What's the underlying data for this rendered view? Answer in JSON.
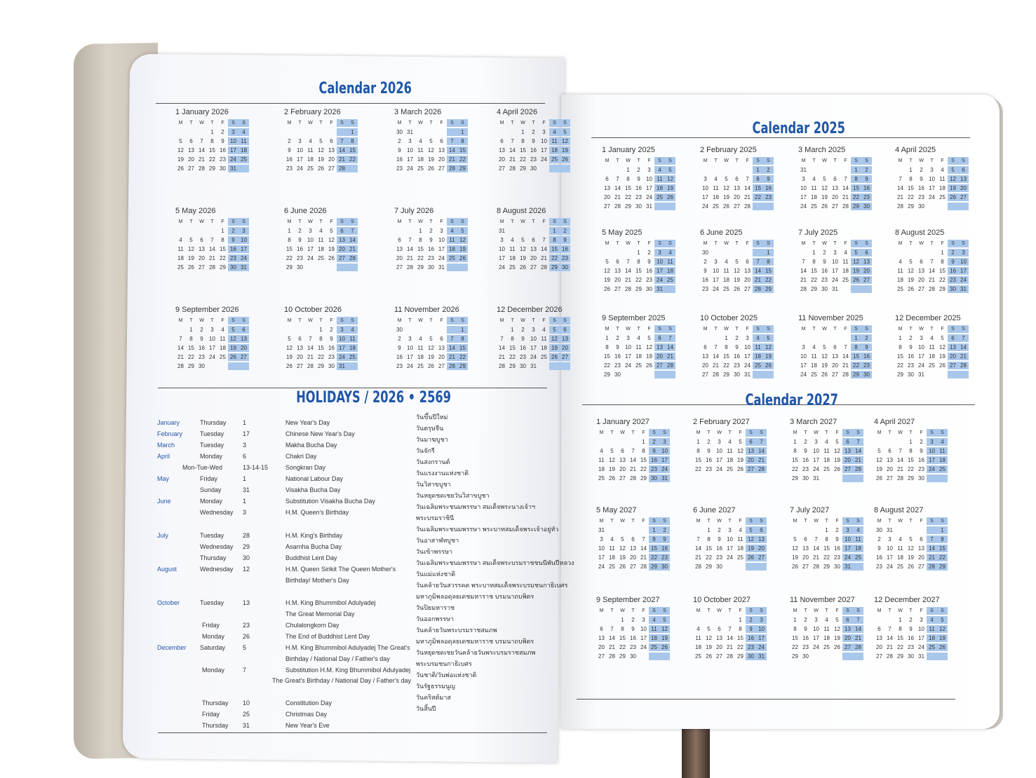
{
  "calendars": [
    {
      "title": "Calendar 2026",
      "year": 2026,
      "months": [
        "1 January 2026",
        "2 February 2026",
        "3 March 2026",
        "4 April 2026",
        "5 May 2026",
        "6 June 2026",
        "7 July 2026",
        "8 August 2026",
        "9 September 2026",
        "10 October 2026",
        "11 November 2026",
        "12 December 2026"
      ]
    },
    {
      "title": "Calendar 2025",
      "year": 2025,
      "months": [
        "1 January 2025",
        "2 February 2025",
        "3 March 2025",
        "4 April 2025",
        "5 May 2025",
        "6 June 2025",
        "7 July 2025",
        "8 August 2025",
        "9 September 2025",
        "10 October 2025",
        "11 November 2025",
        "12 December 2025"
      ]
    },
    {
      "title": "Calendar 2027",
      "year": 2027,
      "months": [
        "1 January 2027",
        "2 February 2027",
        "3 March 2027",
        "4 April 2027",
        "5 May 2027",
        "6 June 2027",
        "7 July 2027",
        "8 August 2027",
        "9 September 2027",
        "10 October 2027",
        "11 November 2027",
        "12 December 2027"
      ]
    }
  ],
  "weekday_headers": [
    "M",
    "T",
    "W",
    "T",
    "F",
    "S",
    "S"
  ],
  "highlight_color": "#a9c7ea",
  "title_color": "#1f56a8",
  "holidays": {
    "title": "HOLIDAYS / 2026 • 2569",
    "rows": [
      {
        "month": "January",
        "day": "Thursday",
        "date": "1",
        "name": "New Year's Day"
      },
      {
        "month": "February",
        "day": "Tuesday",
        "date": "17",
        "name": "Chinese New Year's Day"
      },
      {
        "month": "March",
        "day": "Tuesday",
        "date": "3",
        "name": "Makha Bucha Day"
      },
      {
        "month": "April",
        "day": "Monday",
        "date": "6",
        "name": "Chakri Day"
      },
      {
        "month": "",
        "day": "Mon-Tue-Wed",
        "date": "13-14-15",
        "name": "Songkran Day"
      },
      {
        "month": "May",
        "day": "Friday",
        "date": "1",
        "name": "National Labour Day"
      },
      {
        "month": "",
        "day": "Sunday",
        "date": "31",
        "name": "Visakha Bucha Day"
      },
      {
        "month": "June",
        "day": "Monday",
        "date": "1",
        "name": "Substitution Visakha Bucha Day"
      },
      {
        "month": "",
        "day": "Wednesday",
        "date": "3",
        "name": "H.M. Queen's Birthday"
      },
      {
        "month": "July",
        "day": "Tuesday",
        "date": "28",
        "name": "H.M. King's Birthday"
      },
      {
        "month": "",
        "day": "Wednesday",
        "date": "29",
        "name": "Asarnha Bucha Day"
      },
      {
        "month": "",
        "day": "Thursday",
        "date": "30",
        "name": "Buddhist Lent Day"
      },
      {
        "month": "August",
        "day": "Wednesday",
        "date": "12",
        "name": "H.M. Queen Sirikit The Queen Mother's"
      },
      {
        "month": "",
        "day": "",
        "date": "",
        "name": "Birthday/ Mother's Day"
      },
      {
        "month": "October",
        "day": "Tuesday",
        "date": "13",
        "name": "H.M. King Bhummibol Adulyadej"
      },
      {
        "month": "",
        "day": "",
        "date": "",
        "name": "The Great Memorial Day"
      },
      {
        "month": "",
        "day": "Friday",
        "date": "23",
        "name": "Chulalongkorn Day"
      },
      {
        "month": "",
        "day": "Monday",
        "date": "26",
        "name": "The End of Buddhist Lent Day"
      },
      {
        "month": "December",
        "day": "Saturday",
        "date": "5",
        "name": "H.M. King Bhummibol Adulyadej The Great's"
      },
      {
        "month": "",
        "day": "",
        "date": "",
        "name": "Birthday / National Day / Father's day"
      },
      {
        "month": "",
        "day": "Monday",
        "date": "7",
        "name": "Substitution H.M. King Bhummibol Adulyadej"
      },
      {
        "month": "",
        "day": "",
        "date": "",
        "name": "The Great's Birthday / National Day / Father's day"
      },
      {
        "month": "",
        "day": "Thursday",
        "date": "10",
        "name": "Constitution Day"
      },
      {
        "month": "",
        "day": "Friday",
        "date": "25",
        "name": "Christmas Day"
      },
      {
        "month": "",
        "day": "Thursday",
        "date": "31",
        "name": "New Year's Eve"
      }
    ],
    "thai": [
      "วันขึ้นปีใหม่",
      "วันตรุษจีน",
      "วันมาฆบูชา",
      "วันจักรี",
      "วันสงกรานต์",
      "วันแรงงานแห่งชาติ",
      "วันวิสาขบูชา",
      "วันหยุดชดเชยวันวิสาขบูชา",
      "วันเฉลิมพระชนมพรรษา สมเด็จพระนางเจ้าฯ",
      "พระบรมราชินี",
      "วันเฉลิมพระชนมพรรษา พระบาทสมเด็จพระเจ้าอยู่หัว",
      "วันอาสาฬหบูชา",
      "วันเข้าพรรษา",
      "วันเฉลิมพระชนมพรรษา สมเด็จพระบรมราชชนนีพันปีหลวง",
      "วันแม่แห่งชาติ",
      "วันคล้ายวันสวรรคต พระบาทสมเด็จพระบรมชนกาธิเบศร",
      "มหาภูมิพลอดุลยเดชมหาราช บรมนาถบพิตร",
      "วันปิยมหาราช",
      "วันออกพรรษา",
      "วันคล้ายวันพระบรมราชสมภพ",
      "มหาภูมิพลอดุลยเดชมหาราช บรมนาถบพิตร",
      "วันหยุดชดเชยวันคล้ายวันพระบรมราชสมภพ",
      "พระบรมชนกาธิเบศร",
      "วันชาติ/วันพ่อแห่งชาติ",
      "วันรัฐธรรมนูญ",
      "วันคริสต์มาส",
      "วันสิ้นปี"
    ]
  }
}
